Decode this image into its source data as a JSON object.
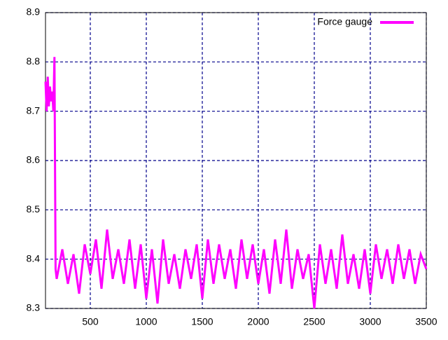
{
  "chart_data": {
    "type": "line",
    "xlim": [
      100,
      3500
    ],
    "ylim": [
      8.3,
      8.9
    ],
    "xticks": [
      500,
      1000,
      1500,
      2000,
      2500,
      3000,
      3500
    ],
    "yticks": [
      8.3,
      8.4,
      8.5,
      8.6,
      8.7,
      8.8,
      8.9
    ],
    "grid": true,
    "legend": "top-right",
    "x": [
      100,
      110,
      120,
      130,
      140,
      150,
      160,
      170,
      180,
      190,
      200,
      250,
      300,
      350,
      400,
      450,
      500,
      550,
      600,
      650,
      700,
      750,
      800,
      850,
      900,
      950,
      1000,
      1050,
      1100,
      1150,
      1200,
      1250,
      1300,
      1350,
      1400,
      1450,
      1500,
      1550,
      1600,
      1650,
      1700,
      1750,
      1800,
      1850,
      1900,
      1950,
      2000,
      2050,
      2100,
      2150,
      2200,
      2250,
      2300,
      2350,
      2400,
      2450,
      2500,
      2550,
      2600,
      2650,
      2700,
      2750,
      2800,
      2850,
      2900,
      2950,
      3000,
      3050,
      3100,
      3150,
      3200,
      3250,
      3300,
      3350,
      3400,
      3450,
      3500
    ],
    "series": [
      {
        "name": "Force gauge",
        "color": "#ff00ff",
        "values": [
          8.76,
          8.7,
          8.77,
          8.71,
          8.75,
          8.72,
          8.74,
          8.7,
          8.81,
          8.38,
          8.36,
          8.42,
          8.35,
          8.41,
          8.33,
          8.43,
          8.37,
          8.44,
          8.34,
          8.46,
          8.36,
          8.42,
          8.35,
          8.44,
          8.34,
          8.43,
          8.32,
          8.42,
          8.31,
          8.44,
          8.35,
          8.41,
          8.34,
          8.42,
          8.36,
          8.43,
          8.32,
          8.44,
          8.35,
          8.43,
          8.36,
          8.42,
          8.34,
          8.44,
          8.36,
          8.43,
          8.35,
          8.42,
          8.33,
          8.44,
          8.35,
          8.46,
          8.34,
          8.42,
          8.36,
          8.41,
          8.3,
          8.43,
          8.35,
          8.42,
          8.34,
          8.45,
          8.35,
          8.41,
          8.34,
          8.42,
          8.33,
          8.43,
          8.36,
          8.42,
          8.35,
          8.43,
          8.36,
          8.42,
          8.35,
          8.41,
          8.38
        ]
      }
    ]
  }
}
